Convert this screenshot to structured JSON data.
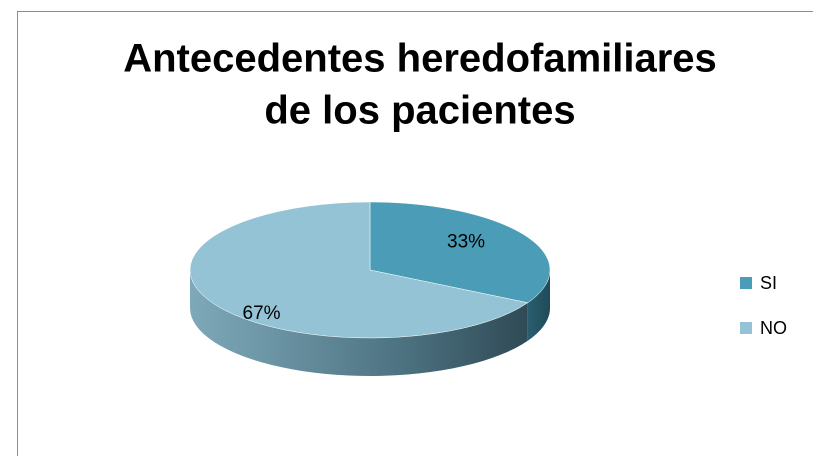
{
  "chart_data": {
    "type": "pie",
    "title": [
      "Antecedentes heredofamiliares",
      "de los pacientes"
    ],
    "categories": [
      "SI",
      "NO"
    ],
    "values": [
      33,
      67
    ],
    "value_labels": [
      "33%",
      "67%"
    ],
    "colors": [
      "#4b9cb6",
      "#93c3d5"
    ],
    "legend": "right"
  }
}
